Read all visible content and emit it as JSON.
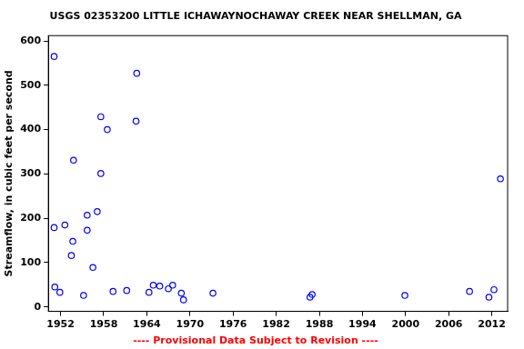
{
  "chart_data": {
    "type": "scatter",
    "title": "USGS 02353200 LITTLE ICHAWAYNOCHAWAY CREEK NEAR SHELLMAN, GA",
    "subtitle": "---- Provisional Data Subject to Revision ----",
    "y_label": "Streamflow, in cubic feet per second",
    "x": [
      1951.1,
      1951.1,
      1951.2,
      1951.9,
      1952.6,
      1953.8,
      1953.7,
      1953.5,
      1955.2,
      1955.7,
      1955.7,
      1956.5,
      1957.1,
      1957.6,
      1957.6,
      1958.5,
      1959.3,
      1961.2,
      1962.6,
      1962.5,
      1964.3,
      1964.9,
      1965.8,
      1967.0,
      1967.6,
      1968.8,
      1969.1,
      1973.2,
      1986.7,
      1987.0,
      1999.9,
      2008.9,
      2011.6,
      2012.3,
      2013.2
    ],
    "values": [
      565,
      179,
      45,
      33,
      185,
      331,
      148,
      116,
      26,
      207,
      173,
      89,
      215,
      429,
      301,
      400,
      35,
      37,
      527,
      419,
      33,
      49,
      47,
      41,
      49,
      31,
      16,
      31,
      22,
      28,
      26,
      35,
      22,
      39,
      289
    ],
    "color": "#0000ff",
    "marker": "circle",
    "xlim": [
      1950.3,
      2014.2
    ],
    "xticks": [
      1952,
      1958,
      1964,
      1970,
      1976,
      1982,
      1988,
      1994,
      2000,
      2006,
      2012
    ],
    "ylim": [
      -10,
      612
    ],
    "yticks": [
      0,
      100,
      200,
      300,
      400,
      500,
      600
    ],
    "grid": false
  }
}
